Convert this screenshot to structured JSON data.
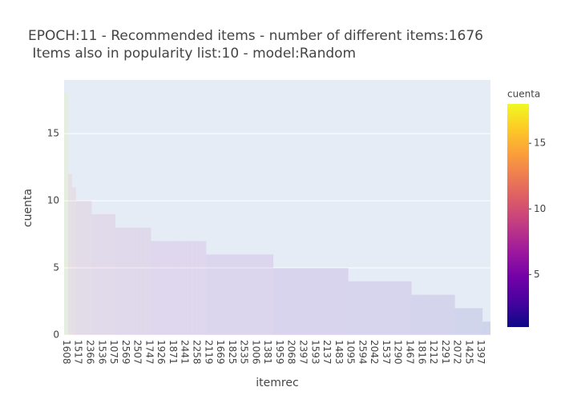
{
  "chart_data": {
    "type": "bar",
    "title": [
      "EPOCH:11 - Recommended items - number of different items:1676",
      " Items also in popularity list:10 - model:Random"
    ],
    "x_label": "itemrec",
    "y_label": "cuenta",
    "categories": [
      "1608",
      null,
      null,
      "1517",
      null,
      null,
      "2366",
      null,
      null,
      "1536",
      null,
      null,
      "1075",
      null,
      null,
      "2569",
      null,
      null,
      "2507",
      null,
      null,
      "1747",
      null,
      null,
      "1926",
      null,
      null,
      "1871",
      null,
      null,
      "2441",
      null,
      null,
      "2258",
      null,
      null,
      "2119",
      null,
      null,
      "1669",
      null,
      null,
      "1825",
      null,
      null,
      "2535",
      null,
      null,
      "1006",
      null,
      null,
      "1381",
      null,
      null,
      "1959",
      null,
      null,
      "2068",
      null,
      null,
      "2397",
      null,
      null,
      "1593",
      null,
      null,
      "2137",
      null,
      null,
      "1483",
      null,
      null,
      "1095",
      null,
      null,
      "2594",
      null,
      null,
      "2042",
      null,
      null,
      "1537",
      null,
      null,
      "1290",
      null,
      null,
      "1467",
      null,
      null,
      "1816",
      null,
      null,
      "1212",
      null,
      null,
      "2291",
      null,
      null,
      "2072",
      null,
      null,
      "1425",
      null,
      null,
      "1397",
      null,
      null
    ],
    "values": [
      18,
      12,
      11,
      10,
      10,
      10,
      10,
      9,
      9,
      9,
      9,
      9,
      9,
      8,
      8,
      8,
      8,
      8,
      8,
      8,
      8,
      8,
      7,
      7,
      7,
      7,
      7,
      7,
      7,
      7,
      7,
      7,
      7,
      7,
      7,
      7,
      6,
      6,
      6,
      6,
      6,
      6,
      6,
      6,
      6,
      6,
      6,
      6,
      6,
      6,
      6,
      6,
      6,
      5,
      5,
      5,
      5,
      5,
      5,
      5,
      5,
      5,
      5,
      5,
      5,
      5,
      5,
      5,
      5,
      5,
      5,
      5,
      4,
      4,
      4,
      4,
      4,
      4,
      4,
      4,
      4,
      4,
      4,
      4,
      4,
      4,
      4,
      4,
      3,
      3,
      3,
      3,
      3,
      3,
      3,
      3,
      3,
      3,
      3,
      2,
      2,
      2,
      2,
      2,
      2,
      2,
      1,
      1
    ],
    "ylim": [
      0,
      19
    ],
    "yticks": [
      0,
      5,
      10,
      15
    ],
    "grid": true,
    "colorbar_title": "cuenta",
    "colorbar_lim": [
      1,
      18
    ],
    "colorbar_ticks": [
      5,
      10,
      15
    ],
    "colorscale": [
      "#0d0887",
      "#46039f",
      "#7201a8",
      "#9c179e",
      "#bd3786",
      "#d8576b",
      "#ed7953",
      "#fb9f3a",
      "#fdca26",
      "#f0f921"
    ],
    "opacity": 0.1
  }
}
